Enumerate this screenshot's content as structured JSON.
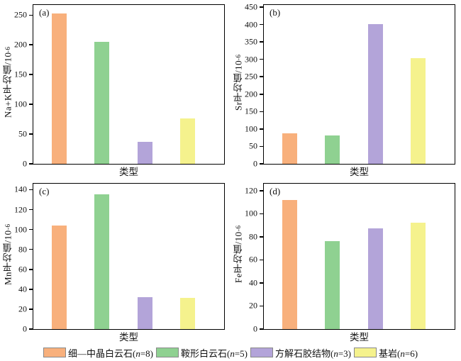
{
  "colors": {
    "series": [
      "#F8B07C",
      "#8FD191",
      "#B3A4D9",
      "#F5F28D"
    ],
    "axis": "#000000"
  },
  "chart_data": [
    {
      "type": "bar",
      "panel_label": "(a)",
      "ylabel": "Na+K平均值/10",
      "ylabel_exp": "-6",
      "xlabel": "类型",
      "categories": [
        "细—中晶白云石(n=8)",
        "鞍形白云石(n=5)",
        "方解石胶结物(n=3)",
        "基岩(n=6)"
      ],
      "values": [
        253,
        205,
        37,
        76
      ],
      "yticks": [
        0,
        50,
        100,
        150,
        200,
        250
      ],
      "ylim": [
        0,
        267
      ],
      "grid": false
    },
    {
      "type": "bar",
      "panel_label": "(b)",
      "ylabel": "Sr平均值/10",
      "ylabel_exp": "-6",
      "xlabel": "类型",
      "categories": [
        "细—中晶白云石(n=8)",
        "鞍形白云石(n=5)",
        "方解石胶结物(n=3)",
        "基岩(n=6)"
      ],
      "values": [
        87,
        82,
        402,
        303
      ],
      "yticks": [
        0,
        50,
        100,
        150,
        200,
        250,
        300,
        350,
        400,
        450
      ],
      "ylim": [
        0,
        456
      ],
      "grid": false
    },
    {
      "type": "bar",
      "panel_label": "(c)",
      "ylabel": "Mn平均值/10",
      "ylabel_exp": "-6",
      "xlabel": "类型",
      "categories": [
        "细—中晶白云石(n=8)",
        "鞍形白云石(n=5)",
        "方解石胶结物(n=3)",
        "基岩(n=6)"
      ],
      "values": [
        104,
        135,
        32,
        31
      ],
      "yticks": [
        0,
        20,
        40,
        60,
        80,
        100,
        120,
        140
      ],
      "ylim": [
        0,
        146
      ],
      "grid": false
    },
    {
      "type": "bar",
      "panel_label": "(d)",
      "ylabel": "Fe平均值/10",
      "ylabel_exp": "-6",
      "xlabel": "类型",
      "categories": [
        "细—中晶白云石(n=8)",
        "鞍形白云石(n=5)",
        "方解石胶结物(n=3)",
        "基岩(n=6)"
      ],
      "values": [
        112,
        76,
        87,
        92
      ],
      "yticks": [
        0,
        20,
        40,
        60,
        80,
        100,
        120
      ],
      "ylim": [
        0,
        126
      ],
      "grid": false
    }
  ],
  "legend": [
    {
      "label_pre": "细—中晶白云石(",
      "label_var": "n",
      "label_post": "=8)"
    },
    {
      "label_pre": "鞍形白云石(",
      "label_var": "n",
      "label_post": "=5)"
    },
    {
      "label_pre": "方解石胶结物(",
      "label_var": "n",
      "label_post": "=3)"
    },
    {
      "label_pre": "基岩(",
      "label_var": "n",
      "label_post": "=6)"
    }
  ]
}
